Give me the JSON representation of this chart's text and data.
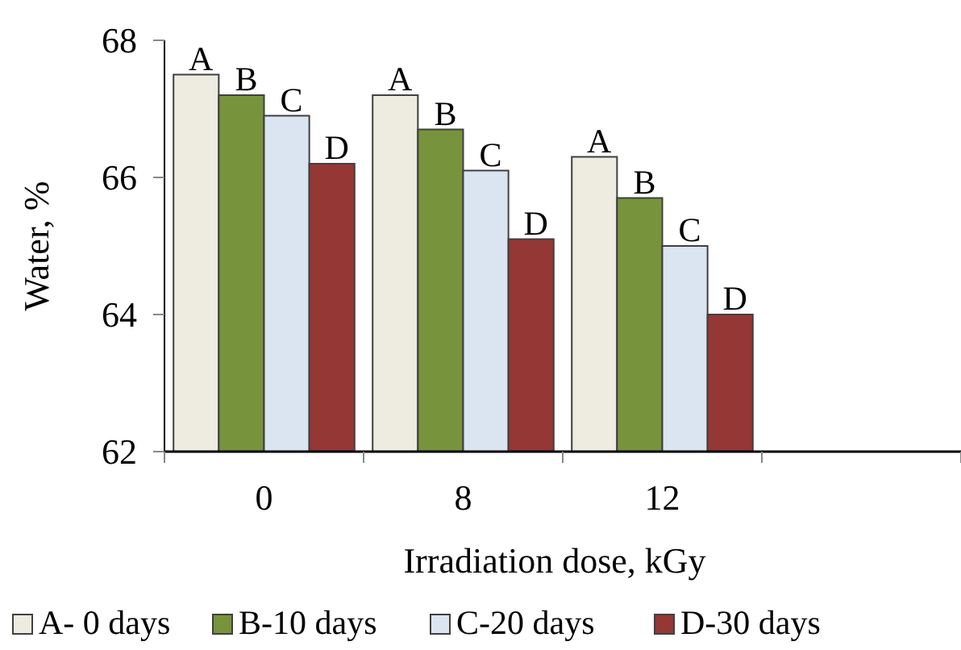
{
  "chart_data": {
    "type": "bar",
    "xlabel": "Irradiation dose, kGy",
    "ylabel": "Water, %",
    "categories": [
      "0",
      "8",
      "12",
      null
    ],
    "series": [
      {
        "name": "A- 0 days",
        "color": "#eeebe0",
        "values": [
          67.5,
          67.2,
          66.3,
          null
        ],
        "value_labels": [
          "A",
          "A",
          "A",
          null
        ]
      },
      {
        "name": "B-10 days",
        "color": "#77933c",
        "values": [
          67.2,
          66.7,
          65.7,
          null
        ],
        "value_labels": [
          "B",
          "B",
          "B",
          null
        ]
      },
      {
        "name": "C-20 days",
        "color": "#dbe5f1",
        "values": [
          66.9,
          66.1,
          65.0,
          null
        ],
        "value_labels": [
          "C",
          "C",
          "C",
          null
        ]
      },
      {
        "name": "D-30 days",
        "color": "#953735",
        "values": [
          66.2,
          65.1,
          64.0,
          null
        ],
        "value_labels": [
          "D",
          "D",
          "D",
          null
        ]
      }
    ],
    "ylim": [
      62,
      68
    ],
    "yticks": [
      62,
      64,
      66,
      68
    ],
    "grid": false,
    "legend": "bottom"
  }
}
